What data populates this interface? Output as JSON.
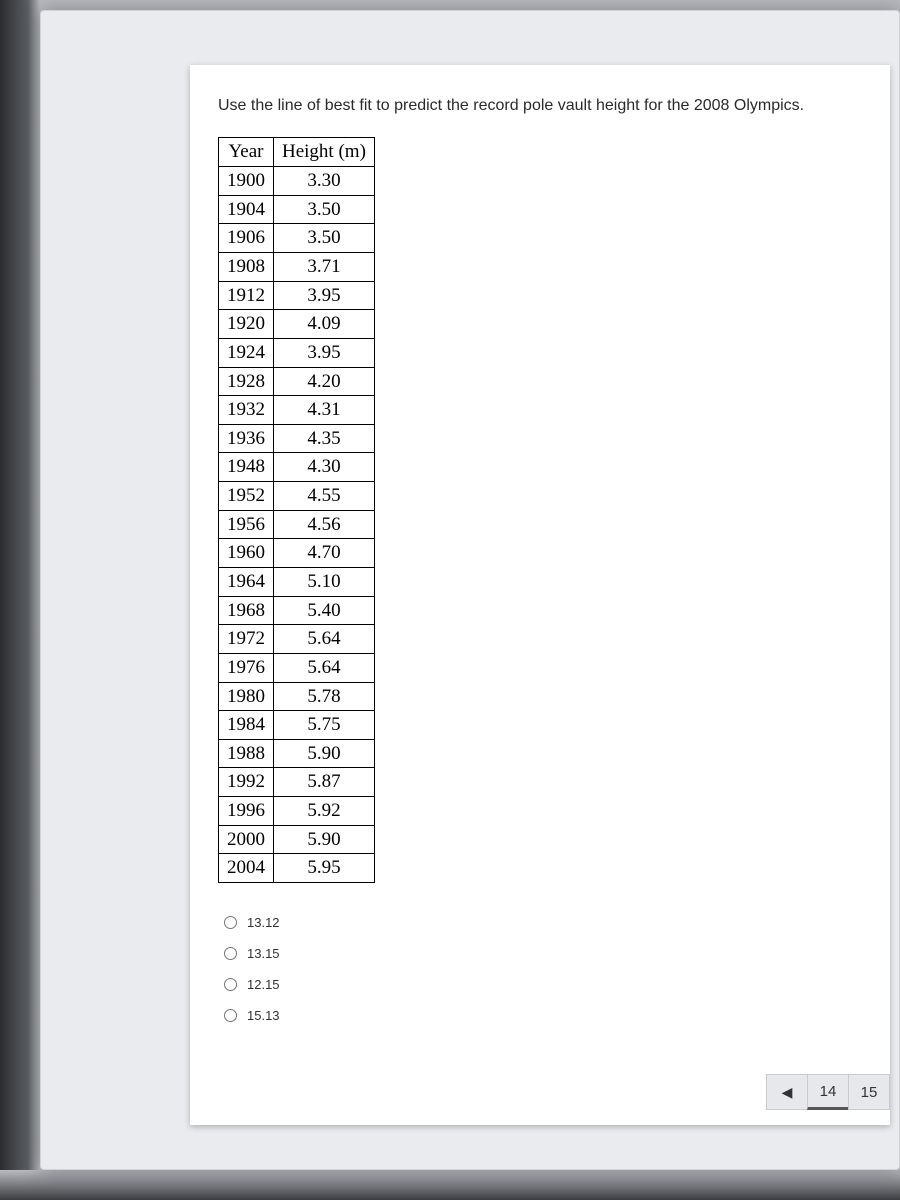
{
  "question": "Use the line of best fit to predict the record pole vault height for the 2008 Olympics.",
  "table": {
    "columns": [
      "Year",
      "Height (m)"
    ],
    "rows": [
      [
        "1900",
        "3.30"
      ],
      [
        "1904",
        "3.50"
      ],
      [
        "1906",
        "3.50"
      ],
      [
        "1908",
        "3.71"
      ],
      [
        "1912",
        "3.95"
      ],
      [
        "1920",
        "4.09"
      ],
      [
        "1924",
        "3.95"
      ],
      [
        "1928",
        "4.20"
      ],
      [
        "1932",
        "4.31"
      ],
      [
        "1936",
        "4.35"
      ],
      [
        "1948",
        "4.30"
      ],
      [
        "1952",
        "4.55"
      ],
      [
        "1956",
        "4.56"
      ],
      [
        "1960",
        "4.70"
      ],
      [
        "1964",
        "5.10"
      ],
      [
        "1968",
        "5.40"
      ],
      [
        "1972",
        "5.64"
      ],
      [
        "1976",
        "5.64"
      ],
      [
        "1980",
        "5.78"
      ],
      [
        "1984",
        "5.75"
      ],
      [
        "1988",
        "5.90"
      ],
      [
        "1992",
        "5.87"
      ],
      [
        "1996",
        "5.92"
      ],
      [
        "2000",
        "5.90"
      ],
      [
        "2004",
        "5.95"
      ]
    ],
    "font_family": "Times New Roman",
    "font_size_pt": 14,
    "border_color": "#000000",
    "cell_align": "center"
  },
  "options": [
    {
      "label": "13.12"
    },
    {
      "label": "13.15"
    },
    {
      "label": "12.15"
    },
    {
      "label": "15.13"
    }
  ],
  "pager": {
    "prev_symbol": "◀",
    "current": "14",
    "next": "15"
  },
  "colors": {
    "page_bg": "#ffffff",
    "outer_bg": "#e9ebee",
    "desk_bg": "#b8bbc0",
    "text": "#2a2a2a"
  }
}
